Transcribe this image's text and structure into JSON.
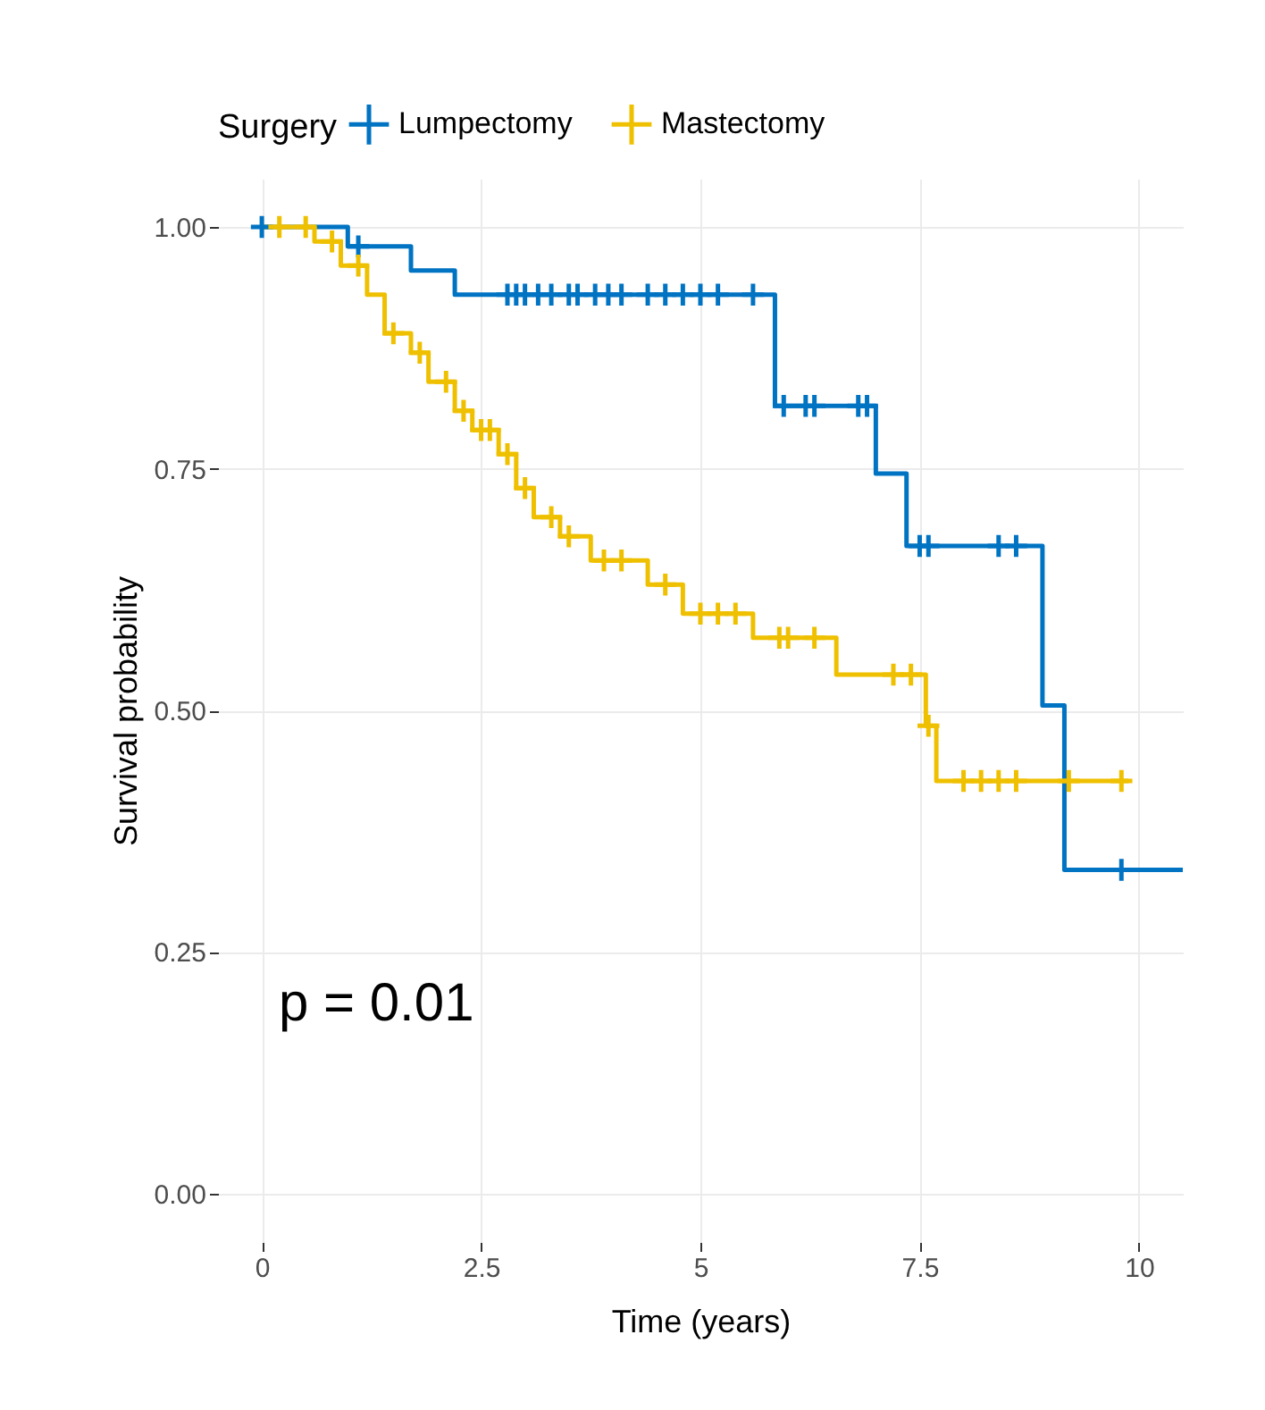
{
  "chart_data": {
    "type": "step",
    "xlabel": "Time (years)",
    "ylabel": "Survival probability",
    "legend_title": "Surgery",
    "legend": "top",
    "grid": true,
    "xlim": [
      -0.5,
      10.5
    ],
    "xticks": [
      0,
      2.5,
      5,
      7.5,
      10
    ],
    "ylim": [
      -0.05,
      1.05
    ],
    "yticks": [
      {
        "value": 0,
        "label": "0.00"
      },
      {
        "value": 0.25,
        "label": "0.25"
      },
      {
        "value": 0.5,
        "label": "0.50"
      },
      {
        "value": 0.75,
        "label": "0.75"
      },
      {
        "value": 1,
        "label": "1.00"
      }
    ],
    "annotations": [
      "p = 0.01"
    ],
    "series": [
      {
        "name": "Lumpectomy",
        "color": "#0073c2",
        "x": [
          0,
          0.98,
          1.7,
          2.2,
          5.85,
          7.0,
          7.35,
          8.9,
          9.15,
          10.5
        ],
        "values": [
          1.0,
          0.98,
          0.955,
          0.93,
          0.815,
          0.745,
          0.67,
          0.505,
          0.335,
          0.335
        ]
      },
      {
        "name": "Mastectomy",
        "color": "#efc000",
        "x": [
          0,
          0.6,
          0.9,
          1.2,
          1.4,
          1.7,
          1.9,
          2.2,
          2.4,
          2.7,
          2.9,
          3.1,
          3.4,
          3.75,
          4.4,
          4.8,
          5.6,
          6.55,
          7.57,
          7.69,
          9.88
        ],
        "values": [
          1.0,
          0.985,
          0.96,
          0.93,
          0.89,
          0.87,
          0.84,
          0.81,
          0.79,
          0.765,
          0.73,
          0.7,
          0.68,
          0.655,
          0.63,
          0.6,
          0.575,
          0.537,
          0.484,
          0.427,
          0.427
        ]
      },
      {
        "type": "scatter",
        "marker": "cross",
        "color": "#0073c2",
        "x": [
          0,
          1.1,
          2.8,
          2.9,
          3.0,
          3.15,
          3.3,
          3.5,
          3.6,
          3.8,
          3.95,
          4.1,
          4.4,
          4.6,
          4.8,
          5.0,
          5.2,
          5.6,
          5.95,
          6.2,
          6.3,
          6.8,
          6.9,
          7.5,
          7.6,
          8.4,
          8.6,
          9.8
        ],
        "values": [
          1.0,
          0.98,
          0.93,
          0.93,
          0.93,
          0.93,
          0.93,
          0.93,
          0.93,
          0.93,
          0.93,
          0.93,
          0.93,
          0.93,
          0.93,
          0.93,
          0.93,
          0.93,
          0.815,
          0.815,
          0.815,
          0.815,
          0.815,
          0.67,
          0.67,
          0.67,
          0.67,
          0.335
        ]
      },
      {
        "type": "scatter",
        "marker": "cross",
        "color": "#efc000",
        "x": [
          0.2,
          0.5,
          0.8,
          1.1,
          1.5,
          1.8,
          2.1,
          2.3,
          2.5,
          2.6,
          2.8,
          3.0,
          3.3,
          3.5,
          3.9,
          4.1,
          4.6,
          5.0,
          5.2,
          5.4,
          5.9,
          6.0,
          6.3,
          7.2,
          7.4,
          7.6,
          8.0,
          8.2,
          8.4,
          8.6,
          9.2,
          9.8
        ],
        "values": [
          1.0,
          1.0,
          0.985,
          0.96,
          0.89,
          0.87,
          0.84,
          0.81,
          0.79,
          0.79,
          0.765,
          0.73,
          0.7,
          0.68,
          0.655,
          0.655,
          0.63,
          0.6,
          0.6,
          0.6,
          0.575,
          0.575,
          0.575,
          0.537,
          0.537,
          0.484,
          0.427,
          0.427,
          0.427,
          0.427,
          0.427,
          0.427
        ]
      }
    ]
  }
}
